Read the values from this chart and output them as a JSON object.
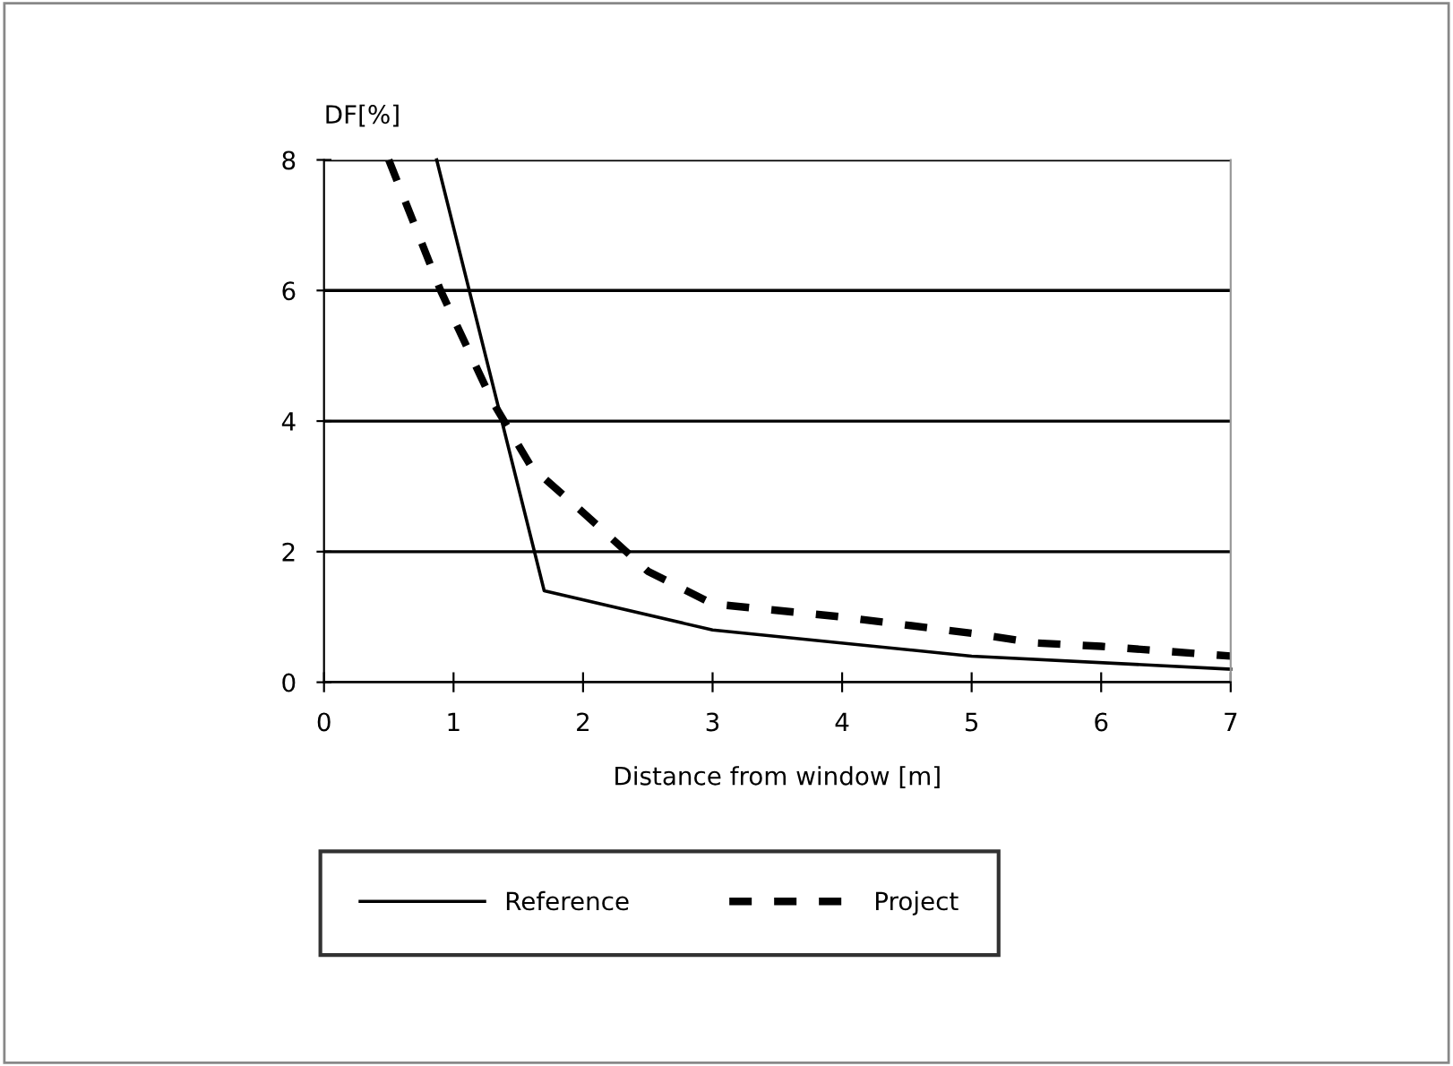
{
  "chart_data": {
    "type": "line",
    "ylabel": "DF[%]",
    "xlabel": "Distance from window [m]",
    "xlim": [
      0,
      7
    ],
    "xticks": [
      0,
      1,
      2,
      3,
      4,
      5,
      6,
      7
    ],
    "ylim": [
      0,
      8
    ],
    "yticks": [
      0,
      2,
      4,
      6,
      8
    ],
    "grid": "y",
    "legend": "bottom",
    "marker": "none",
    "series": [
      {
        "name": "Reference",
        "color": "#000000",
        "line_style": "solid",
        "x": [
          0.87,
          1.7,
          3,
          5,
          7
        ],
        "values": [
          8,
          1.4,
          0.8,
          0.4,
          0.2
        ]
      },
      {
        "name": "Project",
        "color": "#000000",
        "line_style": "dashed",
        "x": [
          0.5,
          0.9,
          1.3,
          1.6,
          2,
          2.5,
          3,
          4,
          5,
          5.5,
          6,
          7
        ],
        "values": [
          8,
          6,
          4.3,
          3.3,
          2.6,
          1.7,
          1.2,
          1.0,
          0.75,
          0.6,
          0.55,
          0.4
        ]
      }
    ]
  }
}
